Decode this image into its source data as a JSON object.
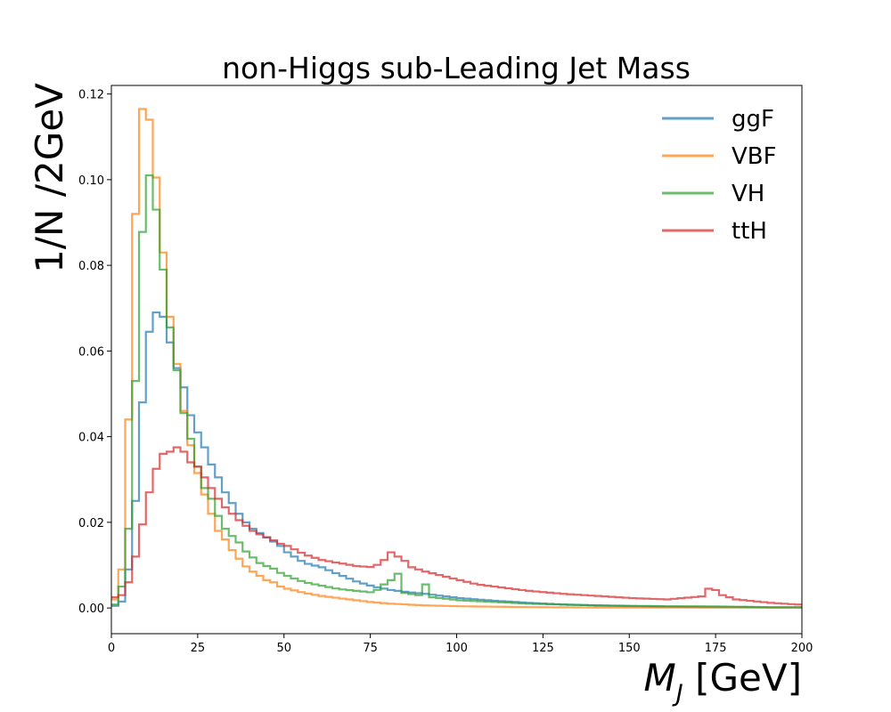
{
  "chart_data": {
    "type": "line",
    "style": "step-histogram",
    "title": "non-Higgs sub-Leading Jet Mass",
    "ylabel": "1/N /2GeV",
    "xlabel_symbol": "M",
    "xlabel_subscript": "J",
    "xlabel_unit": " [GeV]",
    "xlim": [
      0,
      200
    ],
    "ylim": [
      -0.006,
      0.122
    ],
    "bin_width": 2,
    "x_ticks": [
      0,
      25,
      50,
      75,
      100,
      125,
      150,
      175,
      200
    ],
    "y_ticks": [
      0.0,
      0.02,
      0.04,
      0.06,
      0.08,
      0.1,
      0.12
    ],
    "y_tick_labels": [
      "0.00",
      "0.02",
      "0.04",
      "0.06",
      "0.08",
      "0.10",
      "0.12"
    ],
    "grid": false,
    "legend_position": "top-right",
    "series": [
      {
        "name": "ggF",
        "color": "#1f77b4",
        "points": [
          [
            0,
            0.0005
          ],
          [
            2,
            0.0015
          ],
          [
            4,
            0.009
          ],
          [
            6,
            0.025
          ],
          [
            8,
            0.048
          ],
          [
            10,
            0.0645
          ],
          [
            12,
            0.069
          ],
          [
            14,
            0.068
          ],
          [
            16,
            0.062
          ],
          [
            18,
            0.056
          ],
          [
            20,
            0.0515
          ],
          [
            22,
            0.045
          ],
          [
            24,
            0.041
          ],
          [
            26,
            0.0375
          ],
          [
            28,
            0.0335
          ],
          [
            30,
            0.0305
          ],
          [
            32,
            0.027
          ],
          [
            34,
            0.0245
          ],
          [
            36,
            0.022
          ],
          [
            38,
            0.02
          ],
          [
            40,
            0.0185
          ],
          [
            42,
            0.0175
          ],
          [
            44,
            0.0165
          ],
          [
            46,
            0.0155
          ],
          [
            48,
            0.0145
          ],
          [
            50,
            0.013
          ],
          [
            55,
            0.0105
          ],
          [
            60,
            0.0095
          ],
          [
            65,
            0.0078
          ],
          [
            70,
            0.0062
          ],
          [
            75,
            0.005
          ],
          [
            80,
            0.0042
          ],
          [
            85,
            0.0037
          ],
          [
            90,
            0.0033
          ],
          [
            95,
            0.0028
          ],
          [
            100,
            0.0023
          ],
          [
            110,
            0.0017
          ],
          [
            120,
            0.0012
          ],
          [
            130,
            0.0008
          ],
          [
            140,
            0.0006
          ],
          [
            150,
            0.0004
          ],
          [
            160,
            0.0003
          ],
          [
            170,
            0.0002
          ],
          [
            180,
            0.0002
          ],
          [
            190,
            0.0001
          ],
          [
            200,
            0.0001
          ]
        ]
      },
      {
        "name": "VBF",
        "color": "#ff7f0e",
        "points": [
          [
            0,
            0.002
          ],
          [
            2,
            0.009
          ],
          [
            4,
            0.044
          ],
          [
            6,
            0.092
          ],
          [
            8,
            0.1165
          ],
          [
            10,
            0.114
          ],
          [
            12,
            0.1005
          ],
          [
            14,
            0.083
          ],
          [
            16,
            0.068
          ],
          [
            18,
            0.057
          ],
          [
            20,
            0.046
          ],
          [
            22,
            0.038
          ],
          [
            24,
            0.0315
          ],
          [
            26,
            0.0265
          ],
          [
            28,
            0.022
          ],
          [
            30,
            0.018
          ],
          [
            32,
            0.016
          ],
          [
            34,
            0.0135
          ],
          [
            36,
            0.0115
          ],
          [
            38,
            0.0097
          ],
          [
            40,
            0.0085
          ],
          [
            42,
            0.0075
          ],
          [
            44,
            0.0065
          ],
          [
            46,
            0.006
          ],
          [
            48,
            0.005
          ],
          [
            50,
            0.0045
          ],
          [
            55,
            0.0035
          ],
          [
            60,
            0.0028
          ],
          [
            65,
            0.0023
          ],
          [
            70,
            0.0018
          ],
          [
            75,
            0.0013
          ],
          [
            80,
            0.001
          ],
          [
            85,
            0.0008
          ],
          [
            90,
            0.0006
          ],
          [
            95,
            0.0005
          ],
          [
            100,
            0.0004
          ],
          [
            120,
            0.0002
          ],
          [
            140,
            0.0001
          ],
          [
            160,
            0.0001
          ],
          [
            200,
            0.0001
          ]
        ]
      },
      {
        "name": "VH",
        "color": "#2ca02c",
        "points": [
          [
            0,
            0.0008
          ],
          [
            2,
            0.005
          ],
          [
            4,
            0.0185
          ],
          [
            6,
            0.053
          ],
          [
            8,
            0.0878
          ],
          [
            10,
            0.101
          ],
          [
            12,
            0.093
          ],
          [
            14,
            0.079
          ],
          [
            16,
            0.0655
          ],
          [
            18,
            0.0555
          ],
          [
            20,
            0.0455
          ],
          [
            22,
            0.0395
          ],
          [
            24,
            0.033
          ],
          [
            26,
            0.028
          ],
          [
            28,
            0.0255
          ],
          [
            30,
            0.0215
          ],
          [
            32,
            0.0185
          ],
          [
            34,
            0.0168
          ],
          [
            36,
            0.0153
          ],
          [
            38,
            0.0132
          ],
          [
            40,
            0.0118
          ],
          [
            42,
            0.0105
          ],
          [
            44,
            0.0098
          ],
          [
            46,
            0.0092
          ],
          [
            48,
            0.0082
          ],
          [
            50,
            0.0075
          ],
          [
            55,
            0.006
          ],
          [
            60,
            0.0052
          ],
          [
            65,
            0.0044
          ],
          [
            70,
            0.004
          ],
          [
            75,
            0.0036
          ],
          [
            78,
            0.0055
          ],
          [
            80,
            0.0065
          ],
          [
            82,
            0.008
          ],
          [
            84,
            0.0035
          ],
          [
            88,
            0.003
          ],
          [
            90,
            0.0055
          ],
          [
            92,
            0.0025
          ],
          [
            100,
            0.0018
          ],
          [
            110,
            0.0014
          ],
          [
            120,
            0.001
          ],
          [
            130,
            0.0008
          ],
          [
            140,
            0.0006
          ],
          [
            150,
            0.0005
          ],
          [
            160,
            0.0004
          ],
          [
            170,
            0.0004
          ],
          [
            180,
            0.0003
          ],
          [
            190,
            0.0002
          ],
          [
            200,
            0.0002
          ]
        ]
      },
      {
        "name": "ttH",
        "color": "#d62728",
        "points": [
          [
            0,
            0.0025
          ],
          [
            2,
            0.003
          ],
          [
            4,
            0.006
          ],
          [
            6,
            0.012
          ],
          [
            8,
            0.0195
          ],
          [
            10,
            0.027
          ],
          [
            12,
            0.0325
          ],
          [
            14,
            0.036
          ],
          [
            16,
            0.0365
          ],
          [
            18,
            0.0375
          ],
          [
            20,
            0.0365
          ],
          [
            22,
            0.034
          ],
          [
            24,
            0.033
          ],
          [
            26,
            0.0305
          ],
          [
            28,
            0.028
          ],
          [
            30,
            0.0255
          ],
          [
            32,
            0.0235
          ],
          [
            34,
            0.022
          ],
          [
            36,
            0.0205
          ],
          [
            38,
            0.0192
          ],
          [
            40,
            0.018
          ],
          [
            42,
            0.0172
          ],
          [
            44,
            0.0165
          ],
          [
            46,
            0.0158
          ],
          [
            48,
            0.015
          ],
          [
            50,
            0.0145
          ],
          [
            55,
            0.0125
          ],
          [
            60,
            0.0112
          ],
          [
            65,
            0.0105
          ],
          [
            70,
            0.0098
          ],
          [
            75,
            0.0095
          ],
          [
            78,
            0.0112
          ],
          [
            80,
            0.013
          ],
          [
            82,
            0.012
          ],
          [
            84,
            0.011
          ],
          [
            86,
            0.0095
          ],
          [
            90,
            0.0085
          ],
          [
            95,
            0.0075
          ],
          [
            100,
            0.0065
          ],
          [
            105,
            0.0055
          ],
          [
            110,
            0.005
          ],
          [
            115,
            0.0045
          ],
          [
            120,
            0.004
          ],
          [
            130,
            0.0033
          ],
          [
            140,
            0.0028
          ],
          [
            150,
            0.0023
          ],
          [
            160,
            0.002
          ],
          [
            170,
            0.0027
          ],
          [
            172,
            0.0045
          ],
          [
            174,
            0.0042
          ],
          [
            176,
            0.003
          ],
          [
            180,
            0.002
          ],
          [
            190,
            0.0012
          ],
          [
            200,
            0.0007
          ]
        ]
      }
    ]
  }
}
